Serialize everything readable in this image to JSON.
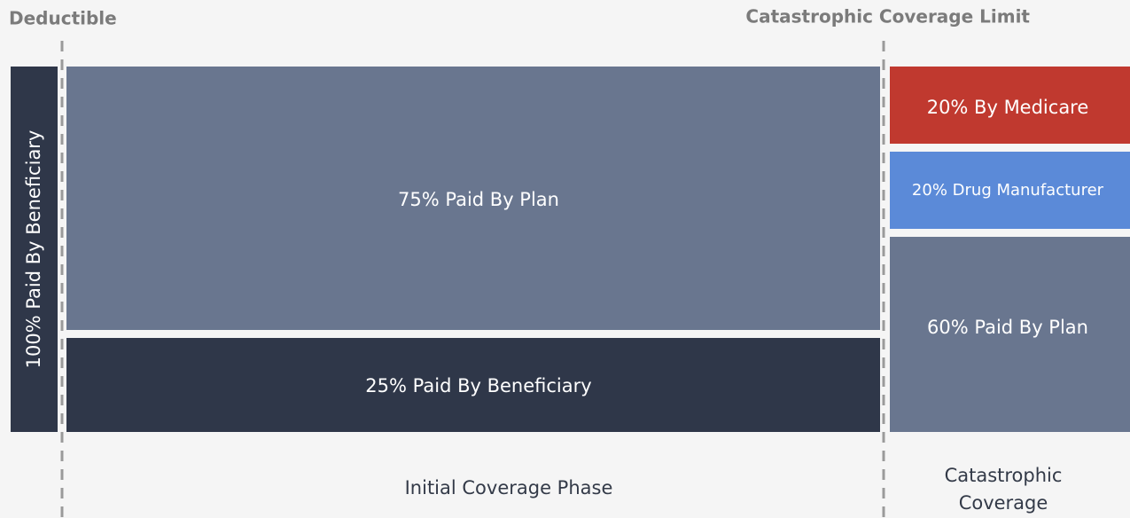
{
  "markers": [
    "Deductible",
    "Catastrophic Coverage Limit"
  ],
  "phases": [
    {
      "segments": [
        "100% Paid By Beneficiary"
      ]
    },
    {
      "label": "Initial Coverage Phase",
      "segments": [
        "75% Paid By Plan",
        "25% Paid By Beneficiary"
      ]
    },
    {
      "label": [
        "Catastrophic",
        "Coverage"
      ],
      "segments": [
        "20% By Medicare",
        "20% Drug Manufacturer",
        "60% Paid By Plan"
      ]
    }
  ]
}
